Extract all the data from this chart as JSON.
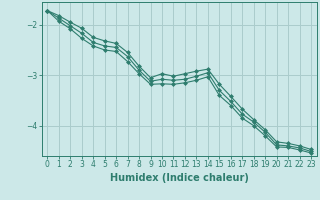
{
  "xlabel": "Humidex (Indice chaleur)",
  "ylabel": "",
  "bg_color": "#cce8e8",
  "grid_color": "#aacccc",
  "line_color": "#2e7d6e",
  "xlim": [
    -0.5,
    23.5
  ],
  "ylim": [
    -4.6,
    -1.55
  ],
  "xticks": [
    0,
    1,
    2,
    3,
    4,
    5,
    6,
    7,
    8,
    9,
    10,
    11,
    12,
    13,
    14,
    15,
    16,
    17,
    18,
    19,
    20,
    21,
    22,
    23
  ],
  "yticks": [
    -4,
    -3,
    -2
  ],
  "x": [
    0,
    1,
    2,
    3,
    4,
    5,
    6,
    7,
    8,
    9,
    10,
    11,
    12,
    13,
    14,
    15,
    16,
    17,
    18,
    19,
    20,
    21,
    22,
    23
  ],
  "line1": [
    -1.72,
    -1.82,
    -1.95,
    -2.07,
    -2.25,
    -2.32,
    -2.37,
    -2.55,
    -2.82,
    -3.05,
    -2.97,
    -3.02,
    -2.97,
    -2.92,
    -2.88,
    -3.18,
    -3.42,
    -3.67,
    -3.88,
    -4.08,
    -4.32,
    -4.35,
    -4.4,
    -4.47
  ],
  "line2": [
    -1.72,
    -1.87,
    -2.02,
    -2.17,
    -2.35,
    -2.42,
    -2.45,
    -2.63,
    -2.9,
    -3.12,
    -3.08,
    -3.1,
    -3.08,
    -3.02,
    -2.95,
    -3.3,
    -3.52,
    -3.77,
    -3.93,
    -4.13,
    -4.38,
    -4.4,
    -4.44,
    -4.51
  ],
  "line3": [
    -1.72,
    -1.93,
    -2.08,
    -2.27,
    -2.42,
    -2.5,
    -2.53,
    -2.73,
    -2.97,
    -3.18,
    -3.17,
    -3.18,
    -3.15,
    -3.1,
    -3.03,
    -3.4,
    -3.6,
    -3.85,
    -4.0,
    -4.2,
    -4.42,
    -4.43,
    -4.48,
    -4.54
  ],
  "marker": "D",
  "markersize": 2.0,
  "linewidth": 0.8,
  "xlabel_fontsize": 7,
  "tick_fontsize": 5.5
}
